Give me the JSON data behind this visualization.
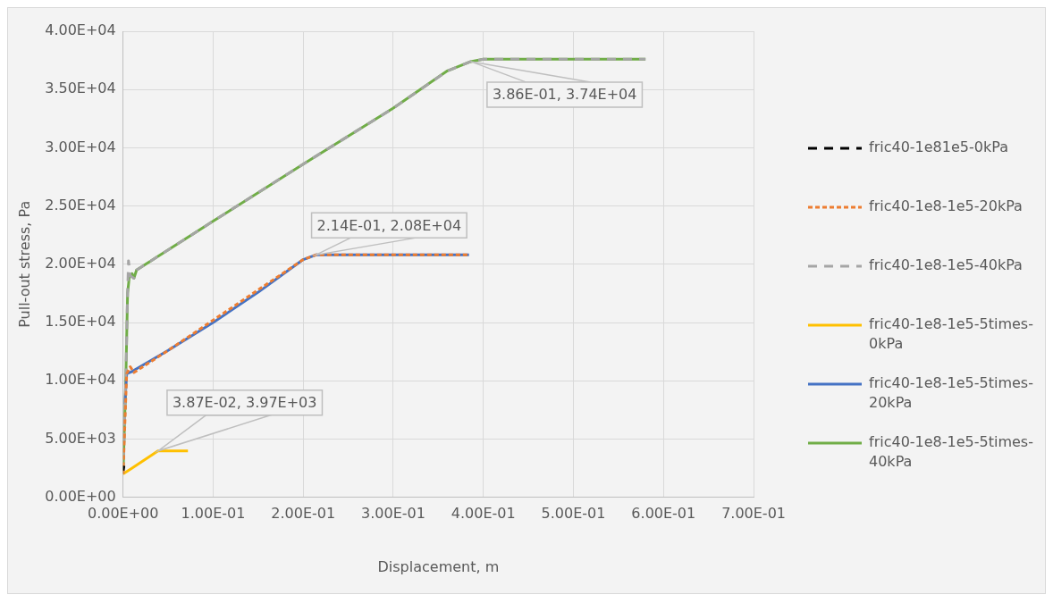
{
  "chart_data": {
    "type": "line",
    "xlabel": "Displacement, m",
    "ylabel": "Pull-out stress, Pa",
    "xlim": [
      0,
      0.7
    ],
    "ylim": [
      0,
      40000
    ],
    "xticks": [
      {
        "value": 0,
        "label": "0.00E+00"
      },
      {
        "value": 0.1,
        "label": "1.00E-01"
      },
      {
        "value": 0.2,
        "label": "2.00E-01"
      },
      {
        "value": 0.3,
        "label": "3.00E-01"
      },
      {
        "value": 0.4,
        "label": "4.00E-01"
      },
      {
        "value": 0.5,
        "label": "5.00E-01"
      },
      {
        "value": 0.6,
        "label": "6.00E-01"
      },
      {
        "value": 0.7,
        "label": "7.00E-01"
      }
    ],
    "yticks": [
      {
        "value": 0,
        "label": "0.00E+00"
      },
      {
        "value": 5000,
        "label": "5.00E+03"
      },
      {
        "value": 10000,
        "label": "1.00E+04"
      },
      {
        "value": 15000,
        "label": "1.50E+04"
      },
      {
        "value": 20000,
        "label": "2.00E+04"
      },
      {
        "value": 25000,
        "label": "2.50E+04"
      },
      {
        "value": 30000,
        "label": "3.00E+04"
      },
      {
        "value": 35000,
        "label": "3.50E+04"
      },
      {
        "value": 40000,
        "label": "4.00E+04"
      }
    ],
    "grid": true,
    "legend": "right",
    "marker": "none",
    "series": [
      {
        "name": "fric40-1e81e5-0kPa",
        "color": "#000000",
        "line_style": "dashed",
        "x": [
          0,
          0.001
        ],
        "values": [
          2300,
          2700
        ]
      },
      {
        "name": "fric40-1e8-1e5-20kPa",
        "color": "#ed7d31",
        "line_style": "dotted",
        "x": [
          0,
          0.004,
          0.008,
          0.012,
          0.05,
          0.2,
          0.214,
          0.384
        ],
        "values": [
          2000,
          10600,
          11200,
          10700,
          12600,
          20400,
          20800,
          20800
        ]
      },
      {
        "name": "fric40-1e8-1e5-40kPa",
        "color": "#a5a5a5",
        "line_style": "dashed",
        "x": [
          0,
          0.003,
          0.005,
          0.006,
          0.008,
          0.012,
          0.015,
          0.1,
          0.2,
          0.3,
          0.36,
          0.386,
          0.4,
          0.58
        ],
        "values": [
          2000,
          10000,
          17500,
          20300,
          19000,
          18800,
          19500,
          23700,
          28600,
          33400,
          36600,
          37400,
          37600,
          37600
        ]
      },
      {
        "name": "fric40-1e8-1e5-5times-0kPa",
        "color": "#ffc000",
        "line_style": "solid",
        "x": [
          0,
          0.01,
          0.0387,
          0.072
        ],
        "values": [
          2000,
          2500,
          3970,
          3970
        ]
      },
      {
        "name": "fric40-1e8-1e5-5times-20kPa",
        "color": "#4472c4",
        "line_style": "solid",
        "x": [
          0.002,
          0.004,
          0.01,
          0.05,
          0.1,
          0.15,
          0.2,
          0.214,
          0.384
        ],
        "values": [
          8000,
          10600,
          10800,
          12600,
          15000,
          17600,
          20400,
          20800,
          20800
        ]
      },
      {
        "name": "fric40-1e8-1e5-5times-40kPa",
        "color": "#70ad47",
        "line_style": "solid",
        "x": [
          0,
          0.003,
          0.005,
          0.007,
          0.01,
          0.012,
          0.015,
          0.1,
          0.2,
          0.3,
          0.36,
          0.386,
          0.4,
          0.58
        ],
        "values": [
          2000,
          10000,
          17500,
          19000,
          19200,
          18800,
          19500,
          23700,
          28600,
          33400,
          36600,
          37400,
          37600,
          37600
        ]
      }
    ],
    "annotations": [
      {
        "text": "3.87E-02, 3.97E+03",
        "x": 0.0387,
        "y": 3970
      },
      {
        "text": "2.14E-01, 2.08E+04",
        "x": 0.214,
        "y": 20800
      },
      {
        "text": "3.86E-01, 3.74E+04",
        "x": 0.386,
        "y": 37400
      }
    ]
  }
}
